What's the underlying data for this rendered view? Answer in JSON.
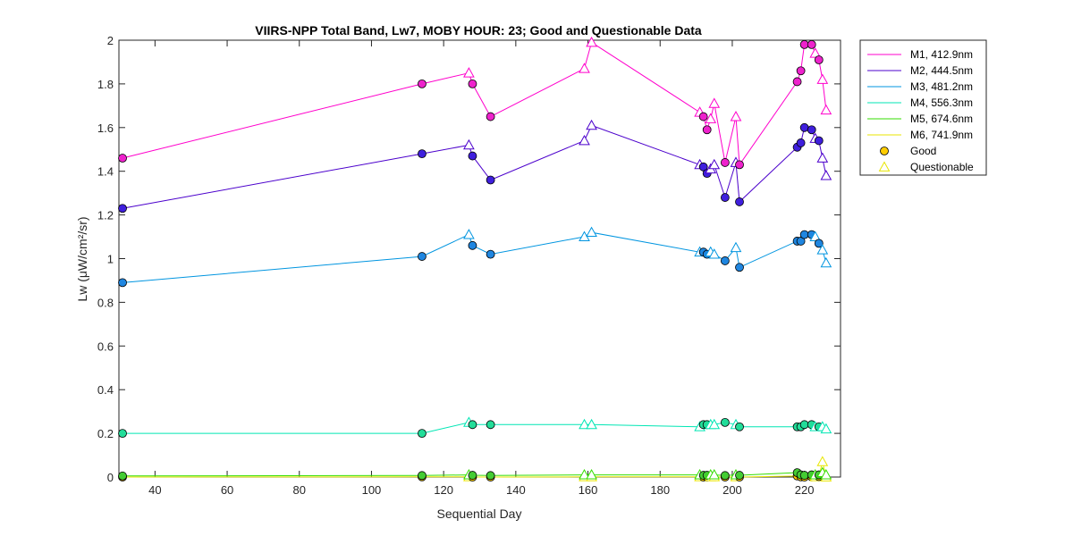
{
  "chart_data": {
    "type": "line",
    "title": "VIIRS-NPP Total Band,  Lw7, MOBY HOUR: 23;  Good and Questionable Data",
    "xlabel": "Sequential Day",
    "ylabel": "Lw (μW/cm²/sr)",
    "xlim": [
      30,
      230
    ],
    "ylim": [
      0,
      2
    ],
    "xticks": [
      40,
      60,
      80,
      100,
      120,
      140,
      160,
      180,
      200,
      220
    ],
    "yticks": [
      0,
      0.2,
      0.4,
      0.6,
      0.8,
      1,
      1.2,
      1.4,
      1.6,
      1.8,
      2
    ],
    "x": [
      31,
      114,
      127,
      128,
      133,
      159,
      161,
      191,
      192,
      193,
      194,
      195,
      198,
      201,
      202,
      218,
      219,
      220,
      222,
      223,
      224,
      225,
      226
    ],
    "quality": [
      "G",
      "G",
      "Q",
      "G",
      "G",
      "Q",
      "Q",
      "Q",
      "G",
      "G",
      "Q",
      "Q",
      "G",
      "Q",
      "G",
      "G",
      "G",
      "G",
      "G",
      "Q",
      "G",
      "Q",
      "Q"
    ],
    "series": [
      {
        "name": "M1, 412.9nm",
        "color": "#ff00cc",
        "fill": "#ee22cc",
        "values": [
          1.46,
          1.8,
          1.85,
          1.8,
          1.65,
          1.87,
          1.99,
          1.67,
          1.65,
          1.59,
          1.64,
          1.71,
          1.44,
          1.65,
          1.43,
          1.81,
          1.86,
          1.98,
          1.98,
          1.94,
          1.91,
          1.82,
          1.68
        ]
      },
      {
        "name": "M2, 444.5nm",
        "color": "#4b00cc",
        "fill": "#3f1fdd",
        "values": [
          1.23,
          1.48,
          1.52,
          1.47,
          1.36,
          1.54,
          1.61,
          1.43,
          1.42,
          1.39,
          1.41,
          1.43,
          1.28,
          1.44,
          1.26,
          1.51,
          1.53,
          1.6,
          1.59,
          1.55,
          1.54,
          1.46,
          1.38
        ]
      },
      {
        "name": "M3, 481.2nm",
        "color": "#0095e0",
        "fill": "#1f86e0",
        "values": [
          0.89,
          1.01,
          1.11,
          1.06,
          1.02,
          1.1,
          1.12,
          1.03,
          1.03,
          1.02,
          1.03,
          1.02,
          0.99,
          1.05,
          0.96,
          1.08,
          1.08,
          1.11,
          1.11,
          1.1,
          1.07,
          1.04,
          0.98
        ]
      },
      {
        "name": "M4, 556.3nm",
        "color": "#00e6b4",
        "fill": "#22dd99",
        "values": [
          0.2,
          0.2,
          0.25,
          0.24,
          0.24,
          0.24,
          0.24,
          0.23,
          0.24,
          0.24,
          0.24,
          0.24,
          0.25,
          0.24,
          0.23,
          0.23,
          0.23,
          0.24,
          0.24,
          0.23,
          0.23,
          0.23,
          0.22
        ]
      },
      {
        "name": "M5, 674.6nm",
        "color": "#33dd00",
        "fill": "#44cc33",
        "values": [
          0.005,
          0.007,
          0.01,
          0.008,
          0.007,
          0.01,
          0.01,
          0.01,
          0.008,
          0.008,
          0.01,
          0.01,
          0.007,
          0.01,
          0.008,
          0.02,
          0.01,
          0.008,
          0.01,
          0.01,
          0.01,
          0.02,
          0.01
        ]
      },
      {
        "name": "M6, 741.9nm",
        "color": "#e8e600",
        "fill": "#ffcc00",
        "values": [
          0.0,
          0.001,
          0.001,
          0.0,
          0.0,
          0.001,
          0.001,
          0.001,
          0.0,
          0.0,
          0.001,
          0.001,
          0.0,
          0.001,
          0.0,
          0.005,
          0.001,
          0.0,
          0.001,
          0.001,
          0.002,
          0.07,
          0.0
        ]
      }
    ],
    "legend": {
      "placement": "outside-top-right",
      "marker_entries": [
        {
          "label": "Good",
          "marker": "circle",
          "fill": "#ffcc00"
        },
        {
          "label": "Questionable",
          "marker": "triangle",
          "color": "#e8e600"
        }
      ]
    },
    "grid": false
  }
}
